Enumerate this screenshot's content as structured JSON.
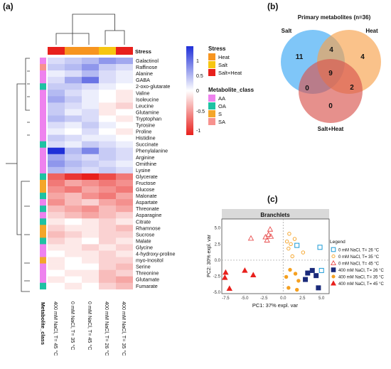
{
  "chart_data": [
    {
      "panel": "(a)",
      "type": "heatmap",
      "top_bar_label": "Stress",
      "bottom_label": "Metabolite_class",
      "columns": [
        "400 mM NaCl, T= 45 °C",
        "0 mM NaCl, T= 35 °C",
        "0 mM NaCl, T= 45 °C",
        "400 mM NaCl, T= 26 °C",
        "400 mM NaCl, T= 35 °C"
      ],
      "column_stress": [
        "Salt+Heat",
        "Heat",
        "Heat",
        "Salt",
        "Salt+Heat"
      ],
      "rows": [
        "Galactinol",
        "Raffinose",
        "Alanine",
        "GABA",
        "2-oxo-glutarate",
        "Valine",
        "Isoleucine",
        "Leucine",
        "Glutamine",
        "Tryptophan",
        "Tyrosine",
        "Proline",
        "Histidine",
        "Succinate",
        "Phenylalanine",
        "Arginine",
        "Ornithine",
        "Lysine",
        "Glycerate",
        "Fructose",
        "Glucose",
        "Malonate",
        "Aspartate",
        "Threonate",
        "Asparagine",
        "Citrate",
        "Rhamnose",
        "Sucrose",
        "Malate",
        "Glycine",
        "4-hydroxy-proline",
        "myo-Inositol",
        "Serine",
        "Threonine",
        "Glutamate",
        "Fumarate"
      ],
      "row_class": [
        "AA",
        "SA",
        "AA",
        "AA",
        "OA",
        "AA",
        "AA",
        "AA",
        "AA",
        "AA",
        "AA",
        "AA",
        "AA",
        "OA",
        "AA",
        "AA",
        "AA",
        "AA",
        "OA",
        "S",
        "S",
        "OA",
        "AA",
        "OA",
        "AA",
        "OA",
        "S",
        "S",
        "OA",
        "AA",
        "AA",
        "S",
        "AA",
        "AA",
        "AA",
        "OA"
      ],
      "values": [
        [
          0.2,
          0.3,
          0.4,
          0.6,
          0.5
        ],
        [
          0.3,
          0.4,
          0.6,
          0.3,
          0.2
        ],
        [
          0.1,
          0.2,
          0.4,
          0.2,
          0.1
        ],
        [
          0.2,
          0.5,
          0.8,
          0.2,
          0.1
        ],
        [
          0.3,
          0.3,
          0.2,
          0.1,
          0.0
        ],
        [
          0.4,
          0.2,
          0.1,
          0.0,
          -0.1
        ],
        [
          0.5,
          0.3,
          0.1,
          0.0,
          -0.1
        ],
        [
          0.3,
          0.2,
          0.1,
          -0.1,
          -0.2
        ],
        [
          0.3,
          0.1,
          0.2,
          -0.1,
          0.0
        ],
        [
          0.4,
          0.3,
          0.2,
          0.0,
          -0.1
        ],
        [
          0.2,
          0.1,
          0.3,
          0.1,
          0.0
        ],
        [
          0.1,
          0.0,
          0.2,
          0.0,
          -0.1
        ],
        [
          0.3,
          0.2,
          0.1,
          0.1,
          0.0
        ],
        [
          0.2,
          0.1,
          0.3,
          0.2,
          0.1
        ],
        [
          1.2,
          0.4,
          0.7,
          0.3,
          0.2
        ],
        [
          0.5,
          0.3,
          0.2,
          0.3,
          0.2
        ],
        [
          0.6,
          0.4,
          0.3,
          0.2,
          0.1
        ],
        [
          0.4,
          0.3,
          0.2,
          0.3,
          0.2
        ],
        [
          -0.7,
          -0.9,
          -1.0,
          -0.8,
          -0.6
        ],
        [
          -0.6,
          -0.4,
          -0.5,
          -0.6,
          -0.5
        ],
        [
          -0.5,
          -0.6,
          -0.4,
          -0.5,
          -0.6
        ],
        [
          -0.4,
          -0.3,
          -0.5,
          -0.6,
          -0.4
        ],
        [
          -0.5,
          -0.3,
          -0.2,
          -0.4,
          -0.5
        ],
        [
          -0.3,
          -0.4,
          -0.5,
          -0.3,
          -0.4
        ],
        [
          -0.2,
          -0.3,
          -0.4,
          -0.3,
          -0.2
        ],
        [
          -0.1,
          0.0,
          -0.1,
          -0.2,
          -0.1
        ],
        [
          -0.2,
          -0.1,
          -0.1,
          -0.2,
          -0.3
        ],
        [
          -0.3,
          -0.2,
          -0.1,
          -0.2,
          -0.2
        ],
        [
          -0.2,
          -0.1,
          0.0,
          -0.2,
          -0.1
        ],
        [
          -0.1,
          -0.1,
          -0.2,
          -0.1,
          -0.2
        ],
        [
          0.0,
          -0.1,
          -0.1,
          -0.2,
          -0.1
        ],
        [
          -0.1,
          0.0,
          -0.1,
          -0.2,
          -0.2
        ],
        [
          -0.1,
          0.0,
          0.0,
          -0.2,
          -0.3
        ],
        [
          0.0,
          -0.1,
          -0.1,
          -0.3,
          -0.2
        ],
        [
          -0.1,
          0.0,
          -0.1,
          -0.3,
          -0.4
        ],
        [
          0.0,
          -0.1,
          0.0,
          -0.2,
          -0.3
        ]
      ],
      "color_scale_ticks": [
        "1",
        "0.5",
        "0",
        "-0.5",
        "-1"
      ],
      "legend_stress_title": "Stress",
      "legend_stress": [
        {
          "label": "Heat",
          "color": "#f79520"
        },
        {
          "label": "Salt",
          "color": "#f7c611"
        },
        {
          "label": "Salt+Heat",
          "color": "#e8201c"
        }
      ],
      "legend_class_title": "Metabolite_class",
      "legend_class": [
        {
          "label": "AA",
          "color": "#ee82ee"
        },
        {
          "label": "OA",
          "color": "#1ec2a3"
        },
        {
          "label": "S",
          "color": "#f4a62a"
        },
        {
          "label": "SA",
          "color": "#f7928e"
        }
      ],
      "colors": {
        "high": "#1f2fd8",
        "mid": "#ffffff",
        "low": "#e8201c"
      }
    },
    {
      "panel": "(b)",
      "type": "venn",
      "title": "Primary metabolites (n=36)",
      "sets": [
        {
          "name": "Salt",
          "color": "#3aa8f5"
        },
        {
          "name": "Heat",
          "color": "#f7a24b"
        },
        {
          "name": "Salt+Heat",
          "color": "#d9544f"
        }
      ],
      "regions": {
        "salt_only": "11",
        "heat_only": "4",
        "saltheat_only": "0",
        "salt_heat": "4",
        "salt_saltheat": "0",
        "heat_saltheat": "2",
        "all": "9"
      }
    },
    {
      "panel": "(c)",
      "type": "scatter",
      "title": "Branchlets",
      "xlabel": "PC1: 37% expl. var",
      "ylabel": "PC2: 30% expl. var",
      "xlim": [
        -8,
        6
      ],
      "ylim": [
        -5.2,
        6.4
      ],
      "xticks": [
        "-7.5",
        "-5.0",
        "-2.5",
        "0.0",
        "2.5",
        "5.0"
      ],
      "yticks": [
        "5.0",
        "2.5",
        "0.0",
        "-2.5",
        "-5.0"
      ],
      "xtick_values": [
        -7.5,
        -5,
        -2.5,
        0,
        2.5,
        5
      ],
      "ytick_values": [
        5,
        2.5,
        0,
        -2.5,
        -5
      ],
      "legend_title": "Legend",
      "series": [
        {
          "name": "0 mM NaCl, T= 26 °C",
          "marker": "square-open",
          "color": "#1a9ad6",
          "x": [
            1.8,
            4.8,
            5.0
          ],
          "y": [
            2.3,
            2.0,
            -1.6
          ]
        },
        {
          "name": "0 mM NaCl, T= 35 °C",
          "marker": "circle-open",
          "color": "#f5a020",
          "x": [
            0.8,
            1.5,
            0.5,
            1.0,
            0.7,
            2.6,
            1.2
          ],
          "y": [
            4.1,
            3.3,
            2.9,
            2.5,
            1.8,
            1.2,
            0.6
          ]
        },
        {
          "name": "0 mM NaCl, T= 45 °C",
          "marker": "triangle-open",
          "color": "#e84c4c",
          "x": [
            -1.7,
            -1.9,
            -2.3,
            -1.6,
            -4.2,
            -2.1
          ],
          "y": [
            4.8,
            4.0,
            3.6,
            3.7,
            3.4,
            3.1
          ]
        },
        {
          "name": "400 mM NaCl, T= 26 °C",
          "marker": "square",
          "color": "#1a2a7a",
          "x": [
            3.2,
            3.8,
            4.3,
            2.9,
            4.6
          ],
          "y": [
            -2.0,
            -1.6,
            -2.4,
            -3.0,
            -4.3
          ]
        },
        {
          "name": "400 mM NaCl, T= 35 °C",
          "marker": "circle",
          "color": "#f5a020",
          "x": [
            0.9,
            1.6,
            0.4,
            2.0,
            0.7,
            1.8
          ],
          "y": [
            -1.5,
            -2.1,
            -2.6,
            -3.2,
            -4.3,
            -4.6
          ]
        },
        {
          "name": "400 mM NaCl, T= 45 °C",
          "marker": "triangle",
          "color": "#e8201c",
          "x": [
            -5.0,
            -7.5,
            -7.6,
            -3.9,
            -7.0
          ],
          "y": [
            -1.6,
            -1.9,
            -2.7,
            -2.3,
            -4.4
          ]
        }
      ]
    }
  ]
}
